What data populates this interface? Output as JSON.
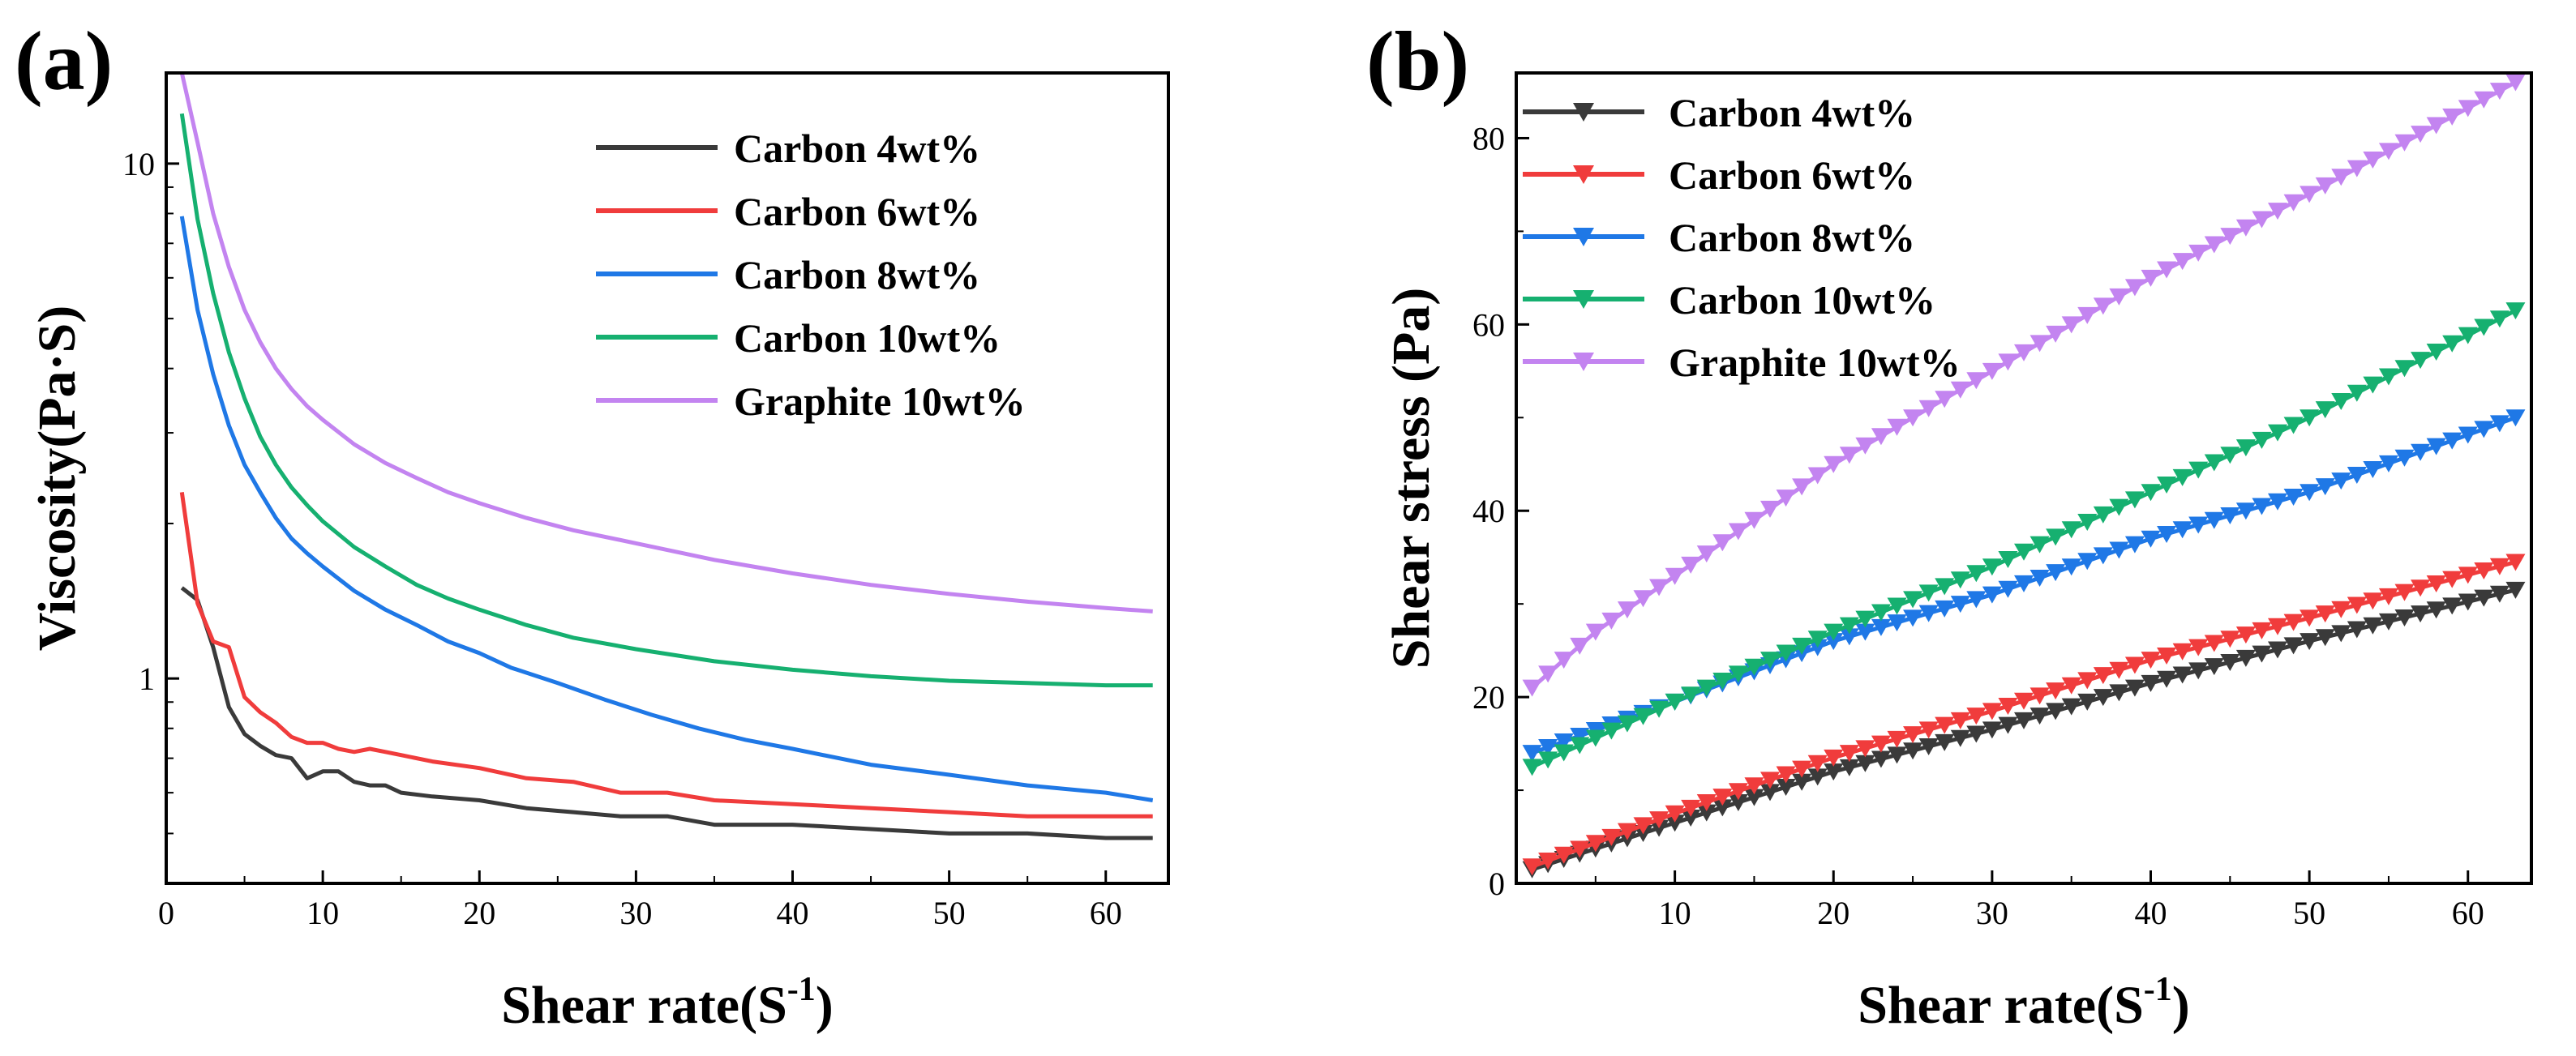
{
  "figure": {
    "panels": [
      {
        "label": "(a)"
      },
      {
        "label": "(b)"
      }
    ]
  },
  "colors": {
    "carbon_4": "#3a3a3a",
    "carbon_6": "#f03c3c",
    "carbon_8": "#1f78e6",
    "carbon_10": "#16b070",
    "graphite_10": "#c384f0"
  },
  "chart_data": [
    {
      "id": "a",
      "type": "line",
      "title": "",
      "xlabel": "Shear rate(S",
      "xlabel_superscript": "-1",
      "xlabel_suffix": ")",
      "ylabel": "Viscosity(Pa·S)",
      "xlim": [
        0,
        64
      ],
      "ylim": [
        0.4,
        15
      ],
      "yscale": "log",
      "xticks": [
        0,
        10,
        20,
        30,
        40,
        50,
        60
      ],
      "yticks": [
        1,
        10
      ],
      "legend_position": "top-right",
      "grid": false,
      "series": [
        {
          "name": "Carbon 4wt%",
          "color_key": "carbon_4",
          "x": [
            1,
            2,
            3,
            4,
            5,
            6,
            7,
            8,
            9,
            10,
            11,
            12,
            13,
            14,
            15,
            17,
            20,
            23,
            26,
            29,
            32,
            35,
            40,
            45,
            50,
            55,
            60,
            63
          ],
          "y": [
            1.5,
            1.42,
            1.15,
            0.88,
            0.78,
            0.74,
            0.71,
            0.7,
            0.64,
            0.66,
            0.66,
            0.63,
            0.62,
            0.62,
            0.6,
            0.59,
            0.58,
            0.56,
            0.55,
            0.54,
            0.54,
            0.52,
            0.52,
            0.51,
            0.5,
            0.5,
            0.49,
            0.49
          ]
        },
        {
          "name": "Carbon 6wt%",
          "color_key": "carbon_6",
          "x": [
            1,
            2,
            3,
            4,
            5,
            6,
            7,
            8,
            9,
            10,
            11,
            12,
            13,
            14,
            15,
            17,
            20,
            23,
            26,
            29,
            32,
            35,
            40,
            45,
            50,
            55,
            60,
            63
          ],
          "y": [
            2.3,
            1.4,
            1.18,
            1.15,
            0.92,
            0.86,
            0.82,
            0.77,
            0.75,
            0.75,
            0.73,
            0.72,
            0.73,
            0.72,
            0.71,
            0.69,
            0.67,
            0.64,
            0.63,
            0.6,
            0.6,
            0.58,
            0.57,
            0.56,
            0.55,
            0.54,
            0.54,
            0.54
          ]
        },
        {
          "name": "Carbon 8wt%",
          "color_key": "carbon_8",
          "x": [
            1,
            2,
            3,
            4,
            5,
            6,
            7,
            8,
            9,
            10,
            12,
            14,
            16,
            18,
            20,
            22,
            25,
            28,
            31,
            34,
            37,
            40,
            45,
            50,
            55,
            60,
            63
          ],
          "y": [
            7.9,
            5.2,
            3.9,
            3.1,
            2.6,
            2.3,
            2.05,
            1.87,
            1.75,
            1.65,
            1.48,
            1.36,
            1.27,
            1.18,
            1.12,
            1.05,
            0.98,
            0.91,
            0.85,
            0.8,
            0.76,
            0.73,
            0.68,
            0.65,
            0.62,
            0.6,
            0.58
          ]
        },
        {
          "name": "Carbon 10wt%",
          "color_key": "carbon_10",
          "x": [
            1,
            2,
            3,
            4,
            5,
            6,
            7,
            8,
            9,
            10,
            12,
            14,
            16,
            18,
            20,
            23,
            26,
            30,
            35,
            40,
            45,
            50,
            55,
            60,
            63
          ],
          "y": [
            12.5,
            7.8,
            5.6,
            4.3,
            3.5,
            2.95,
            2.6,
            2.35,
            2.17,
            2.02,
            1.8,
            1.65,
            1.52,
            1.43,
            1.36,
            1.27,
            1.2,
            1.14,
            1.08,
            1.04,
            1.01,
            0.99,
            0.98,
            0.97,
            0.97
          ]
        },
        {
          "name": "Graphite 10wt%",
          "color_key": "graphite_10",
          "x": [
            1,
            2,
            3,
            4,
            5,
            6,
            7,
            8,
            9,
            10,
            12,
            14,
            16,
            18,
            20,
            23,
            26,
            30,
            35,
            40,
            45,
            50,
            55,
            60,
            63
          ],
          "y": [
            15.0,
            11.0,
            8.0,
            6.3,
            5.2,
            4.5,
            4.0,
            3.65,
            3.38,
            3.18,
            2.85,
            2.62,
            2.45,
            2.3,
            2.19,
            2.05,
            1.94,
            1.83,
            1.7,
            1.6,
            1.52,
            1.46,
            1.41,
            1.37,
            1.35
          ]
        }
      ]
    },
    {
      "id": "b",
      "type": "line",
      "title": "",
      "xlabel": "Shear rate(S",
      "xlabel_superscript": "-1",
      "xlabel_suffix": ")",
      "ylabel": "Shear stress (Pa)",
      "xlim": [
        0,
        64
      ],
      "ylim": [
        0,
        87
      ],
      "yscale": "linear",
      "xticks": [
        10,
        20,
        30,
        40,
        50,
        60
      ],
      "yticks": [
        0,
        20,
        40,
        60,
        80
      ],
      "marker": "down-triangle",
      "legend_position": "top-left",
      "grid": false,
      "series": [
        {
          "name": "Carbon 4wt%",
          "color_key": "carbon_4",
          "x": [
            1,
            10,
            20,
            30,
            40,
            50,
            63
          ],
          "y": [
            1.5,
            6.5,
            12,
            16.5,
            21.5,
            26,
            31.5
          ]
        },
        {
          "name": "Carbon 6wt%",
          "color_key": "carbon_6",
          "x": [
            1,
            10,
            20,
            30,
            40,
            50,
            63
          ],
          "y": [
            1.8,
            7.5,
            13.5,
            18.5,
            24,
            28.5,
            34.5
          ]
        },
        {
          "name": "Carbon 8wt%",
          "color_key": "carbon_8",
          "x": [
            1,
            10,
            20,
            30,
            40,
            50,
            63
          ],
          "y": [
            14,
            19.5,
            26,
            31,
            37,
            42,
            50
          ]
        },
        {
          "name": "Carbon 10wt%",
          "color_key": "carbon_10",
          "x": [
            1,
            10,
            20,
            30,
            40,
            50,
            63
          ],
          "y": [
            12.5,
            19.5,
            27,
            34,
            42,
            50,
            61.5
          ]
        },
        {
          "name": "Graphite 10wt%",
          "color_key": "graphite_10",
          "x": [
            1,
            5,
            10,
            20,
            30,
            40,
            50,
            63
          ],
          "y": [
            21,
            27,
            33,
            45,
            55,
            65,
            74,
            86
          ]
        }
      ]
    }
  ]
}
